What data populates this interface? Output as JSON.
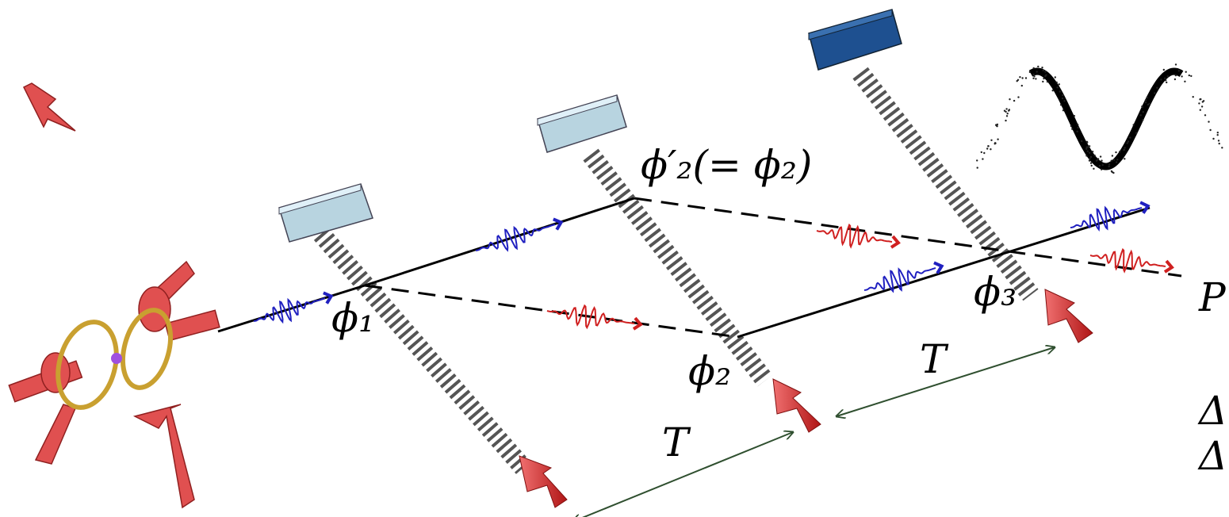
{
  "labels": [
    "ϕ₁",
    "ϕ₂",
    "ϕ₃",
    "ϕ′₂(= ϕ₂)",
    "T",
    "T",
    "P",
    "Δ",
    "Δ"
  ]
}
